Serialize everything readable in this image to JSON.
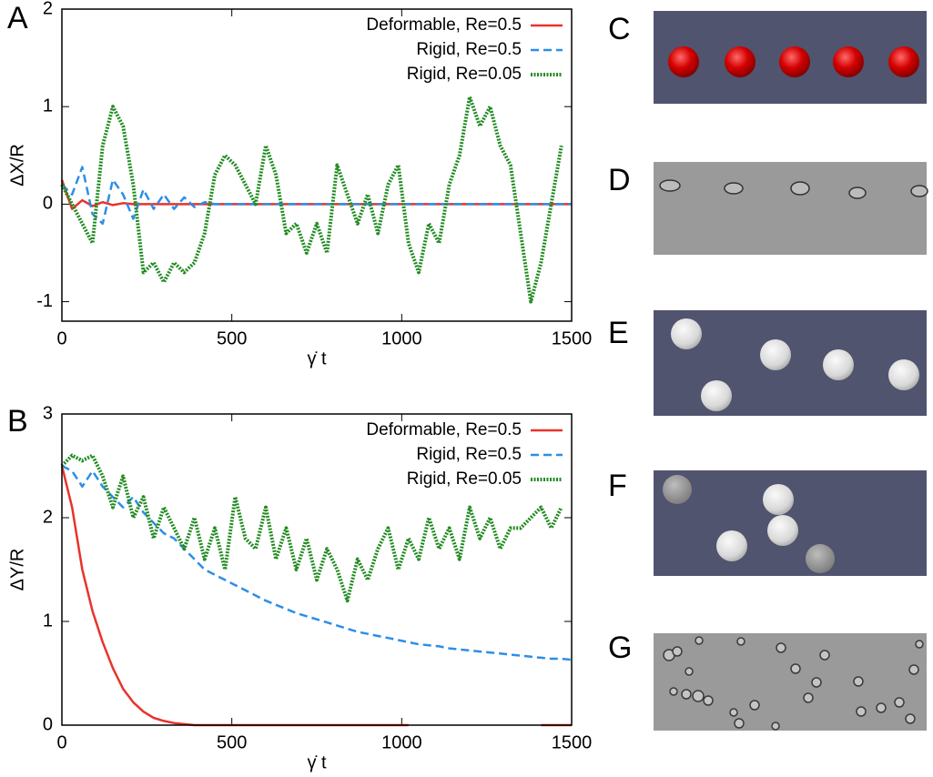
{
  "chart_data": [
    {
      "type": "line",
      "label": "A",
      "xlabel": "γ̇ t",
      "ylabel": "ΔX/R",
      "xlim": [
        0,
        1500
      ],
      "xticks": [
        0,
        500,
        1000,
        1500
      ],
      "ylim": [
        -1.2,
        2
      ],
      "yticks": [
        -1,
        0,
        1,
        2
      ],
      "legend": "upper right",
      "x": [
        0,
        30,
        60,
        90,
        120,
        150,
        180,
        210,
        240,
        270,
        300,
        330,
        360,
        390,
        420,
        450,
        480,
        510,
        540,
        570,
        600,
        630,
        660,
        690,
        720,
        750,
        780,
        810,
        840,
        870,
        900,
        930,
        960,
        990,
        1020,
        1050,
        1080,
        1110,
        1140,
        1170,
        1200,
        1230,
        1260,
        1290,
        1320,
        1350,
        1380,
        1410,
        1440,
        1470,
        1500
      ],
      "series": [
        {
          "name": "Deformable, Re=0.5",
          "color": "#e8332b",
          "linestyle": "solid",
          "values": [
            0.25,
            -0.05,
            0.04,
            -0.02,
            0.02,
            -0.01,
            0.01,
            0,
            0,
            0,
            0,
            0,
            0,
            0,
            0,
            0,
            0,
            0,
            0,
            0,
            0,
            0,
            0,
            0,
            0,
            0,
            0,
            0,
            0,
            0,
            0,
            0,
            0,
            0,
            0,
            0,
            0,
            0,
            0,
            0,
            0,
            0,
            0,
            0,
            0,
            0,
            0,
            0,
            0,
            0,
            0
          ]
        },
        {
          "name": "Rigid, Re=0.5",
          "color": "#2d8ee8",
          "linestyle": "dashed",
          "values": [
            0.2,
            0.1,
            0.38,
            -0.1,
            -0.2,
            0.25,
            0.1,
            -0.15,
            0.15,
            -0.05,
            0.1,
            -0.05,
            0.07,
            -0.03,
            0.02,
            0,
            0,
            0,
            0,
            0,
            0,
            0,
            0,
            0,
            0,
            0,
            0,
            0,
            0,
            0,
            0,
            0,
            0,
            0,
            0,
            0,
            0,
            0,
            0,
            0,
            0,
            0,
            0,
            0,
            0,
            0,
            0,
            0,
            0,
            0,
            0
          ]
        },
        {
          "name": "Rigid, Re=0.05",
          "color": "#228b22",
          "linestyle": "dotted",
          "values": [
            0.2,
            0.0,
            -0.2,
            -0.4,
            0.6,
            1.0,
            0.8,
            0.2,
            -0.7,
            -0.6,
            -0.8,
            -0.6,
            -0.7,
            -0.6,
            -0.3,
            0.3,
            0.5,
            0.4,
            0.2,
            0.0,
            0.6,
            0.3,
            -0.3,
            -0.2,
            -0.5,
            -0.2,
            -0.5,
            0.4,
            0.1,
            -0.2,
            0.1,
            -0.3,
            0.2,
            0.4,
            -0.4,
            -0.7,
            -0.2,
            -0.4,
            0.2,
            0.5,
            1.1,
            0.8,
            1.0,
            0.6,
            0.4,
            -0.3,
            -1.0,
            -0.6,
            0.0,
            0.6,
            null
          ]
        }
      ]
    },
    {
      "type": "line",
      "label": "B",
      "xlabel": "γ̇ t",
      "ylabel": "ΔY/R",
      "xlim": [
        0,
        1500
      ],
      "xticks": [
        0,
        500,
        1000,
        1500
      ],
      "ylim": [
        0,
        3
      ],
      "yticks": [
        0,
        1,
        2,
        3
      ],
      "legend": "upper right",
      "x": [
        0,
        30,
        60,
        90,
        120,
        150,
        180,
        210,
        240,
        270,
        300,
        330,
        360,
        390,
        420,
        450,
        480,
        510,
        540,
        570,
        600,
        630,
        660,
        690,
        720,
        750,
        780,
        810,
        840,
        870,
        900,
        930,
        960,
        990,
        1020,
        1050,
        1080,
        1110,
        1140,
        1170,
        1200,
        1230,
        1260,
        1290,
        1320,
        1350,
        1380,
        1410,
        1440,
        1470,
        1500
      ],
      "series": [
        {
          "name": "Deformable, Re=0.5",
          "color": "#e8332b",
          "linestyle": "solid",
          "values": [
            2.5,
            2.1,
            1.5,
            1.1,
            0.8,
            0.55,
            0.35,
            0.22,
            0.13,
            0.07,
            0.04,
            0.02,
            0.01,
            0,
            0,
            0,
            0,
            0,
            0,
            0,
            0,
            0,
            0,
            0,
            0,
            0,
            0,
            0,
            0,
            0,
            0,
            0,
            0,
            0,
            0,
            null,
            null,
            null,
            null,
            null,
            null,
            null,
            null,
            null,
            null,
            null,
            null,
            0,
            0,
            0,
            0
          ]
        },
        {
          "name": "Rigid, Re=0.5",
          "color": "#2d8ee8",
          "linestyle": "dashed",
          "values": [
            2.5,
            2.45,
            2.3,
            2.45,
            2.3,
            2.2,
            2.1,
            2.2,
            2.05,
            1.95,
            1.85,
            1.8,
            1.7,
            1.6,
            1.5,
            1.45,
            1.4,
            1.35,
            1.3,
            1.25,
            1.2,
            1.16,
            1.12,
            1.08,
            1.05,
            1.02,
            0.99,
            0.96,
            0.93,
            0.9,
            0.88,
            0.86,
            0.84,
            0.82,
            0.8,
            0.78,
            0.77,
            0.76,
            0.74,
            0.73,
            0.72,
            0.71,
            0.7,
            0.69,
            0.68,
            0.67,
            0.66,
            0.65,
            0.64,
            0.64,
            0.63
          ]
        },
        {
          "name": "Rigid, Re=0.05",
          "color": "#228b22",
          "linestyle": "dotted",
          "values": [
            2.5,
            2.6,
            2.55,
            2.6,
            2.4,
            2.1,
            2.4,
            2.0,
            2.2,
            1.8,
            2.1,
            1.9,
            1.7,
            2.0,
            1.6,
            1.9,
            1.5,
            2.2,
            1.8,
            1.7,
            2.1,
            1.6,
            1.9,
            1.5,
            1.8,
            1.4,
            1.7,
            1.5,
            1.2,
            1.6,
            1.4,
            1.7,
            1.9,
            1.5,
            1.8,
            1.6,
            2.0,
            1.7,
            1.9,
            1.6,
            2.1,
            1.8,
            2.0,
            1.7,
            1.9,
            1.9,
            2.0,
            2.1,
            1.9,
            2.1,
            null
          ]
        }
      ]
    }
  ],
  "panels": [
    {
      "label": "C"
    },
    {
      "label": "D"
    },
    {
      "label": "E"
    },
    {
      "label": "F"
    },
    {
      "label": "G"
    }
  ]
}
